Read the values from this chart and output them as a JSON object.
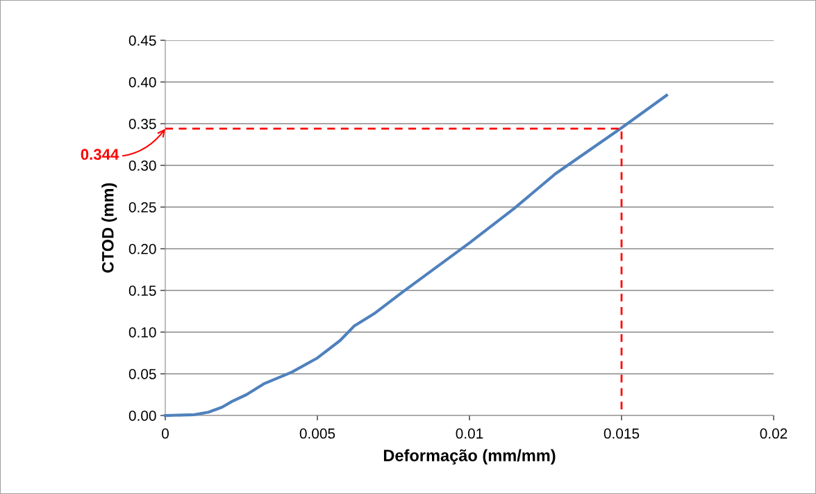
{
  "chart_data": {
    "type": "line",
    "xlabel": "Deformação (mm/mm)",
    "ylabel": "CTOD (mm)",
    "series": [
      {
        "color": "#4f81bd",
        "line_style": "solid",
        "x": [
          0,
          0.00096,
          0.00142,
          0.00187,
          0.0022,
          0.00267,
          0.00324,
          0.00416,
          0.005,
          0.00575,
          0.0062,
          0.0069,
          0.0078,
          0.01,
          0.01146,
          0.01283,
          0.015,
          0.01648
        ],
        "values": [
          0,
          0.001,
          0.004,
          0.01,
          0.017,
          0.025,
          0.038,
          0.052,
          0.069,
          0.09,
          0.107,
          0.123,
          0.148,
          0.207,
          0.248,
          0.29,
          0.345,
          0.384
        ]
      },
      {
        "color": "#ff0000",
        "line_style": "dashed",
        "x": [
          0,
          0.015,
          0.015
        ],
        "values": [
          0.344,
          0.344,
          0
        ]
      }
    ],
    "annotations": [
      {
        "text": "0.344",
        "x": 0,
        "y": 0.344
      }
    ],
    "xlim": [
      0,
      0.02
    ],
    "xticks": [
      0,
      0.005,
      0.01,
      0.015,
      0.02
    ],
    "ylim": [
      0,
      0.45
    ],
    "yticks": [
      {
        "value": 0,
        "label": "0.00"
      },
      {
        "value": 0.05,
        "label": "0.05"
      },
      {
        "value": 0.1,
        "label": "0.10"
      },
      {
        "value": 0.15,
        "label": "0.15"
      },
      {
        "value": 0.2,
        "label": "0.20"
      },
      {
        "value": 0.25,
        "label": "0.25"
      },
      {
        "value": 0.3,
        "label": "0.30"
      },
      {
        "value": 0.35,
        "label": "0.35"
      },
      {
        "value": 0.4,
        "label": "0.40"
      },
      {
        "value": 0.45,
        "label": "0.45"
      }
    ],
    "grid": "y",
    "marker": "none"
  }
}
